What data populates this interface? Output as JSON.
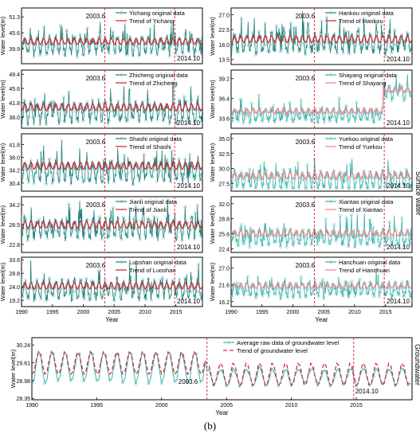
{
  "caption": "(b)",
  "side_labels": {
    "surface": "Surface water",
    "ground": "Groundwater"
  },
  "colors": {
    "raw": "#1d7f78",
    "trend": "#c8313c",
    "marker": "#8fd3cc",
    "event": "#e0202a",
    "raw_light": "#35b3aa",
    "trend_light": "#f08a90"
  },
  "chart_data": [
    {
      "type": "line",
      "station": "Yichang",
      "ylabel": "Water level(m)",
      "xlabel": "",
      "yticks": [
        "39.9",
        "45.6",
        "51.3"
      ],
      "ylim": [
        34.5,
        54.5
      ],
      "xlim": [
        1990,
        2019.3
      ],
      "xticks": [],
      "base": 41,
      "amp": 5,
      "trend_level": 42.5,
      "events": {
        "a_label": "2003.6",
        "a_x": 2003.5,
        "b_label": "2014.10",
        "b_x": 2014.8
      },
      "series": [
        {
          "name": "Yichang original data"
        },
        {
          "name": "Trend of Yichang"
        }
      ],
      "style": "dark"
    },
    {
      "type": "line",
      "station": "Zhicheng",
      "ylabel": "Water level(m)",
      "xlabel": "",
      "yticks": [
        "38.0",
        "41.8",
        "45.6",
        "49.4"
      ],
      "ylim": [
        35.0,
        50.5
      ],
      "xlim": [
        1990,
        2019.3
      ],
      "xticks": [],
      "base": 39.3,
      "amp": 4.2,
      "trend_level": 40.6,
      "events": {
        "a_label": "2003.6",
        "a_x": 2003.5,
        "b_label": "2014.10",
        "b_x": 2014.8
      },
      "series": [
        {
          "name": "Zhicheng original data"
        },
        {
          "name": "Trend of Zhicheng"
        }
      ],
      "style": "dark"
    },
    {
      "type": "line",
      "station": "Shashi",
      "ylabel": "Water level(m)",
      "xlabel": "",
      "yticks": [
        "30.4",
        "34.2",
        "38.0",
        "41.8"
      ],
      "ylim": [
        28.0,
        45.0
      ],
      "xlim": [
        1990,
        2019.3
      ],
      "xticks": [],
      "base": 33.8,
      "amp": 4.8,
      "trend_level": 35.5,
      "events": {
        "a_label": "2003.6",
        "a_x": 2003.5,
        "b_label": "2014.10",
        "b_x": 2014.8
      },
      "series": [
        {
          "name": "Shashi original data"
        },
        {
          "name": "Trend of Shashi"
        }
      ],
      "style": "dark"
    },
    {
      "type": "line",
      "station": "Jianli",
      "ylabel": "Water level(m)",
      "xlabel": "",
      "yticks": [
        "22.8",
        "28.5",
        "34.2"
      ],
      "ylim": [
        20.5,
        36.5
      ],
      "xlim": [
        1990,
        2019.3
      ],
      "xticks": [],
      "base": 27.4,
      "amp": 4.5,
      "trend_level": 28.4,
      "events": {
        "a_label": "2003.6",
        "a_x": 2003.5,
        "b_label": "2014.10",
        "b_x": 2014.8
      },
      "series": [
        {
          "name": "Jianli original data"
        },
        {
          "name": "Trend of Jianli"
        }
      ],
      "style": "dark"
    },
    {
      "type": "line",
      "station": "Luoshan",
      "ylabel": "Water level(m)",
      "xlabel": "Year",
      "yticks": [
        "19.2",
        "24.0",
        "28.8",
        "33.6"
      ],
      "ylim": [
        17.0,
        34.5
      ],
      "xlim": [
        1990,
        2019.3
      ],
      "xticks": [
        "1990",
        "1995",
        "2000",
        "2005",
        "2010",
        "2015"
      ],
      "base": 23.0,
      "amp": 5.2,
      "trend_level": 24.4,
      "events": {
        "a_label": "2003.6",
        "a_x": 2003.5,
        "b_label": "2014.10",
        "b_x": 2014.8
      },
      "series": [
        {
          "name": "Luoshan original data"
        },
        {
          "name": "Trend of Luoshan"
        }
      ],
      "style": "dark"
    },
    {
      "type": "line",
      "station": "Hankou",
      "ylabel": "Water level(m)",
      "xlabel": "",
      "yticks": [
        "13.5",
        "18.0",
        "22.5",
        "27.0"
      ],
      "ylim": [
        12.0,
        29.0
      ],
      "xlim": [
        1990,
        2019.3
      ],
      "xticks": [],
      "base": 18.5,
      "amp": 4.8,
      "trend_level": 19.6,
      "events": {
        "a_label": "2003.6",
        "a_x": 2003.5,
        "b_label": "2014.10",
        "b_x": 2014.8
      },
      "series": [
        {
          "name": "Hankou original data"
        },
        {
          "name": "Trend of Hankou"
        }
      ],
      "style": "dark"
    },
    {
      "type": "line",
      "station": "Shayang",
      "ylabel": "Water level(m)",
      "xlabel": "",
      "yticks": [
        "33.6",
        "36.4",
        "39.2"
      ],
      "ylim": [
        32.2,
        40.4
      ],
      "xlim": [
        1990,
        2019.3
      ],
      "xticks": [],
      "base": 34.0,
      "amp": 1.4,
      "trend_level": 34.6,
      "events": {
        "a_label": "2003.6",
        "a_x": 2003.5,
        "b_label": "2014.10",
        "b_x": 2014.8
      },
      "series": [
        {
          "name": "Shayang original data"
        },
        {
          "name": "Trend of Shayang"
        }
      ],
      "style": "light"
    },
    {
      "type": "line",
      "station": "Yuekou",
      "ylabel": "Water level(m)",
      "xlabel": "",
      "yticks": [
        "27.5",
        "30.0",
        "32.5",
        "35.0"
      ],
      "ylim": [
        26.2,
        35.8
      ],
      "xlim": [
        1990,
        2019.3
      ],
      "xticks": [],
      "base": 28.0,
      "amp": 2.4,
      "trend_level": 28.8,
      "events": {
        "a_label": "2003.6",
        "a_x": 2003.5,
        "b_label": "2014.10",
        "b_x": 2014.8
      },
      "series": [
        {
          "name": "Yuekou original data"
        },
        {
          "name": "Trend of Yuekou"
        }
      ],
      "style": "light"
    },
    {
      "type": "line",
      "station": "Xiantao",
      "ylabel": "Water level(m)",
      "xlabel": "",
      "yticks": [
        "22.4",
        "25.6",
        "28.8",
        "32.0"
      ],
      "ylim": [
        21.6,
        33.5
      ],
      "xlim": [
        1990,
        2019.3
      ],
      "xticks": [],
      "base": 24.8,
      "amp": 2.6,
      "trend_level": 25.7,
      "events": {
        "a_label": "2003.6",
        "a_x": 2003.5,
        "b_label": "2014.10",
        "b_x": 2014.8
      },
      "series": [
        {
          "name": "Xiantao original data"
        },
        {
          "name": "Trend of Xiantao"
        }
      ],
      "style": "light"
    },
    {
      "type": "line",
      "station": "Hanchuan",
      "ylabel": "Water level(m)",
      "xlabel": "Year",
      "yticks": [
        "16.2",
        "21.6",
        "27.0"
      ],
      "ylim": [
        14.6,
        30.5
      ],
      "xlim": [
        1990,
        2019.3
      ],
      "xticks": [
        "1990",
        "1995",
        "2000",
        "2005",
        "2010",
        "2015"
      ],
      "base": 20.0,
      "amp": 3.6,
      "trend_level": 21.3,
      "events": {
        "a_label": "2003.6",
        "a_x": 2003.5,
        "b_label": "2014.10",
        "b_x": 2014.8
      },
      "series": [
        {
          "name": "Hanchuan original data"
        },
        {
          "name": "Trend of Hanchuan"
        }
      ],
      "style": "light"
    },
    {
      "type": "line",
      "station": "Groundwater",
      "ylabel": "Water level(m)",
      "xlabel": "Year",
      "yticks": [
        "28.35",
        "28.98",
        "29.61",
        "30.24"
      ],
      "ylim": [
        28.3,
        30.5
      ],
      "xlim": [
        1990,
        2019.3
      ],
      "xticks": [
        "1990",
        "1995",
        "2000",
        "2005",
        "2010",
        "2015"
      ],
      "base": 29.3,
      "amp": 0.55,
      "trend_level": 29.35,
      "events": {
        "a_label": "2003.6",
        "a_x": 2003.5,
        "b_label": "2014.10",
        "b_x": 2014.8
      },
      "series": [
        {
          "name": "Average raw data of groundwater level"
        },
        {
          "name": "Trend of groundwater level"
        }
      ],
      "style": "ground"
    }
  ]
}
